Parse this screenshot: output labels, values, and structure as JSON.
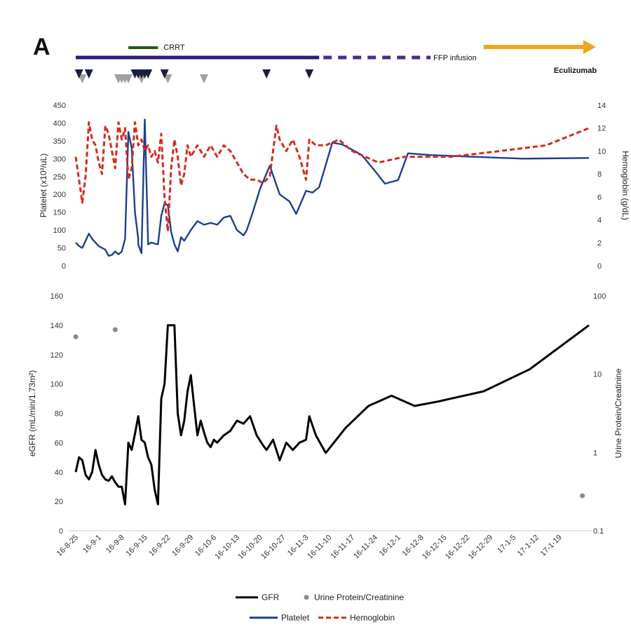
{
  "panel_label": "A",
  "colors": {
    "platelet": "#1f3e8c",
    "hemoglobin": "#d42b1e",
    "gfr": "#000000",
    "urine": "#8a8a8a",
    "fwd_bar": "#2e1a72",
    "ffp_dash": "#4b2a8f",
    "crrt": "#1f5a1f",
    "eculizumab": "#f0a51b",
    "marker_dark": "#1a1f3a",
    "marker_gray": "#a0a0a0"
  },
  "timeline": {
    "crrt_label": "CRRT",
    "crrt_range": [
      "16-9-10",
      "16-9-19"
    ],
    "ffp_label": "FFP infusion",
    "ffp_solid_range": [
      "16-8-25",
      "16-11-7"
    ],
    "ffp_dashed_range": [
      "16-11-7",
      "16-12-13"
    ],
    "eculizumab_label": "Eculizumab",
    "eculizumab_range": [
      "16-12-27",
      "17-1-25"
    ],
    "dark_markers": [
      "16-8-26",
      "16-8-29",
      "16-9-12",
      "16-9-13",
      "16-9-14",
      "16-9-15",
      "16-9-16",
      "16-9-21",
      "16-10-22",
      "16-11-4"
    ],
    "gray_markers": [
      "16-8-27",
      "16-9-7",
      "16-9-8",
      "16-9-9",
      "16-9-10",
      "16-9-14",
      "16-9-22",
      "16-10-3"
    ]
  },
  "legend": {
    "gfr": "GFR",
    "urine": "Urine Protein/Creatinine",
    "platelet": "Platelet",
    "hemoglobin": "Hemoglobin"
  },
  "chart_data": [
    {
      "type": "line",
      "panel": "top",
      "ylabel_left": "Platelet (x10³/uL)",
      "ylabel_right": "Hemoglobin (g/dL)",
      "yleft_range": [
        0,
        450
      ],
      "yleft_ticks": [
        "0",
        "50",
        "100",
        "150",
        "200",
        "250",
        "300",
        "350",
        "400",
        "450"
      ],
      "yright_range": [
        0,
        14
      ],
      "yright_ticks": [
        "0",
        "2",
        "4",
        "6",
        "8",
        "10",
        "12",
        "14"
      ],
      "grid": false,
      "series": [
        {
          "name": "Platelet",
          "axis": "left",
          "style": "solid",
          "x": [
            "16-8-25",
            "16-8-26",
            "16-8-27",
            "16-8-28",
            "16-8-29",
            "16-8-30",
            "16-8-31",
            "16-9-1",
            "16-9-2",
            "16-9-3",
            "16-9-4",
            "16-9-5",
            "16-9-6",
            "16-9-7",
            "16-9-8",
            "16-9-9",
            "16-9-10",
            "16-9-11",
            "16-9-12",
            "16-9-13",
            "16-9-13",
            "16-9-14",
            "16-9-15",
            "16-9-16",
            "16-9-16",
            "16-9-17",
            "16-9-18",
            "16-9-19",
            "16-9-20",
            "16-9-21",
            "16-9-22",
            "16-9-23",
            "16-9-24",
            "16-9-25",
            "16-9-26",
            "16-9-27",
            "16-9-28",
            "16-9-29",
            "16-10-1",
            "16-10-3",
            "16-10-5",
            "16-10-7",
            "16-10-9",
            "16-10-11",
            "16-10-13",
            "16-10-15",
            "16-10-16",
            "16-10-18",
            "16-10-20",
            "16-10-23",
            "16-10-26",
            "16-10-29",
            "16-10-31",
            "16-11-3",
            "16-11-5",
            "16-11-7",
            "16-11-11",
            "16-11-14",
            "16-11-17",
            "16-11-20",
            "16-11-24",
            "16-11-27",
            "16-12-1",
            "16-12-4",
            "16-12-11",
            "16-12-25",
            "17-1-8",
            "17-1-28"
          ],
          "values": [
            65,
            55,
            50,
            70,
            90,
            75,
            65,
            55,
            50,
            45,
            28,
            30,
            40,
            32,
            40,
            75,
            375,
            330,
            150,
            75,
            60,
            35,
            410,
            70,
            60,
            65,
            62,
            60,
            140,
            175,
            170,
            95,
            60,
            40,
            80,
            70,
            85,
            100,
            125,
            115,
            120,
            115,
            135,
            140,
            100,
            85,
            100,
            155,
            215,
            280,
            200,
            180,
            145,
            210,
            205,
            220,
            345,
            340,
            325,
            310,
            265,
            230,
            240,
            315,
            310,
            305,
            300,
            302
          ]
        },
        {
          "name": "Hemoglobin",
          "axis": "right",
          "style": "dashed",
          "x": [
            "16-8-25",
            "16-8-26",
            "16-8-27",
            "16-8-28",
            "16-8-29",
            "16-8-30",
            "16-8-31",
            "16-9-1",
            "16-9-2",
            "16-9-3",
            "16-9-4",
            "16-9-5",
            "16-9-6",
            "16-9-7",
            "16-9-8",
            "16-9-9",
            "16-9-10",
            "16-9-11",
            "16-9-12",
            "16-9-13",
            "16-9-14",
            "16-9-15",
            "16-9-16",
            "16-9-17",
            "16-9-18",
            "16-9-19",
            "16-9-20",
            "16-9-21",
            "16-9-22",
            "16-9-23",
            "16-9-24",
            "16-9-25",
            "16-9-26",
            "16-9-27",
            "16-9-28",
            "16-9-29",
            "16-10-1",
            "16-10-3",
            "16-10-5",
            "16-10-7",
            "16-10-9",
            "16-10-11",
            "16-10-13",
            "16-10-15",
            "16-10-17",
            "16-10-19",
            "16-10-21",
            "16-10-23",
            "16-10-25",
            "16-10-26",
            "16-10-28",
            "16-10-30",
            "16-11-1",
            "16-11-3",
            "16-11-4",
            "16-11-6",
            "16-11-9",
            "16-11-13",
            "16-11-17",
            "16-11-21",
            "16-11-25",
            "16-12-3",
            "16-12-17",
            "17-1-1",
            "17-1-15",
            "17-1-28"
          ],
          "values": [
            9.5,
            7.5,
            5.5,
            7.8,
            12.5,
            11,
            10.5,
            9,
            8,
            12.2,
            11.5,
            10,
            8.5,
            12.5,
            11,
            12,
            7.5,
            8.5,
            12.5,
            10.5,
            11,
            10,
            10.5,
            9.5,
            10,
            9,
            11.5,
            6,
            3,
            8.5,
            11,
            9.5,
            7,
            8,
            10.5,
            9.5,
            10.5,
            9.5,
            10.5,
            9.5,
            10.5,
            10,
            9,
            8,
            7.5,
            7.5,
            7.2,
            7.8,
            12.2,
            11,
            10,
            11,
            9.5,
            7.5,
            11,
            10.5,
            10.5,
            11,
            10,
            9.5,
            9,
            9.5,
            9.5,
            10,
            10.5,
            12
          ]
        }
      ]
    },
    {
      "type": "line",
      "panel": "bottom",
      "ylabel_left": "eGFR (mL/min/1.73m²)",
      "ylabel_right": "Urine Protein/Creatinine",
      "yleft_range": [
        0,
        160
      ],
      "yleft_ticks": [
        "0",
        "20",
        "40",
        "60",
        "80",
        "100",
        "120",
        "140",
        "160"
      ],
      "yright_range": [
        0.1,
        100
      ],
      "yright_scale": "log",
      "yright_ticks": [
        "0.1",
        "1",
        "10",
        "100"
      ],
      "x_tick_labels": [
        "16-8-25",
        "16-9-1",
        "16-9-8",
        "16-9-15",
        "16-9-22",
        "16-9-29",
        "16-10-6",
        "16-10-13",
        "16-10-20",
        "16-10-27",
        "16-11-3",
        "16-11-10",
        "16-11-17",
        "16-11-24",
        "16-12-1",
        "16-12-8",
        "16-12-15",
        "16-12-22",
        "16-12-29",
        "17-1-5",
        "17-1-12",
        "17-1-19"
      ],
      "grid": false,
      "series": [
        {
          "name": "GFR",
          "axis": "left",
          "style": "solid",
          "x": [
            "16-8-25",
            "16-8-26",
            "16-8-27",
            "16-8-28",
            "16-8-29",
            "16-8-30",
            "16-8-31",
            "16-9-1",
            "16-9-2",
            "16-9-3",
            "16-9-4",
            "16-9-5",
            "16-9-6",
            "16-9-7",
            "16-9-8",
            "16-9-9",
            "16-9-10",
            "16-9-11",
            "16-9-12",
            "16-9-13",
            "16-9-14",
            "16-9-15",
            "16-9-16",
            "16-9-17",
            "16-9-18",
            "16-9-19",
            "16-9-20",
            "16-9-21",
            "16-9-22",
            "16-9-23",
            "16-9-24",
            "16-9-25",
            "16-9-26",
            "16-9-27",
            "16-9-28",
            "16-9-29",
            "16-9-30",
            "16-10-1",
            "16-10-2",
            "16-10-3",
            "16-10-4",
            "16-10-5",
            "16-10-6",
            "16-10-7",
            "16-10-9",
            "16-10-11",
            "16-10-13",
            "16-10-15",
            "16-10-17",
            "16-10-19",
            "16-10-21",
            "16-10-22",
            "16-10-24",
            "16-10-26",
            "16-10-28",
            "16-10-30",
            "16-11-1",
            "16-11-3",
            "16-11-4",
            "16-11-6",
            "16-11-9",
            "16-11-15",
            "16-11-22",
            "16-11-29",
            "16-12-6",
            "16-12-13",
            "16-12-27",
            "17-1-10",
            "17-1-28"
          ],
          "values": [
            40,
            50,
            48,
            38,
            35,
            40,
            55,
            45,
            38,
            35,
            34,
            37,
            33,
            30,
            30,
            18,
            60,
            55,
            66,
            78,
            62,
            60,
            50,
            45,
            28,
            18,
            90,
            100,
            140,
            140,
            140,
            80,
            65,
            75,
            95,
            106,
            85,
            65,
            75,
            67,
            60,
            57,
            62,
            60,
            65,
            68,
            75,
            73,
            78,
            65,
            58,
            55,
            62,
            48,
            60,
            55,
            60,
            62,
            78,
            65,
            53,
            70,
            85,
            92,
            85,
            88,
            95,
            110,
            140
          ]
        },
        {
          "name": "Urine Protein/Creatinine",
          "axis": "right",
          "style": "markers",
          "x": [
            "16-8-25",
            "16-9-6",
            "17-1-26"
          ],
          "values": [
            30,
            37,
            0.28
          ]
        }
      ]
    }
  ]
}
